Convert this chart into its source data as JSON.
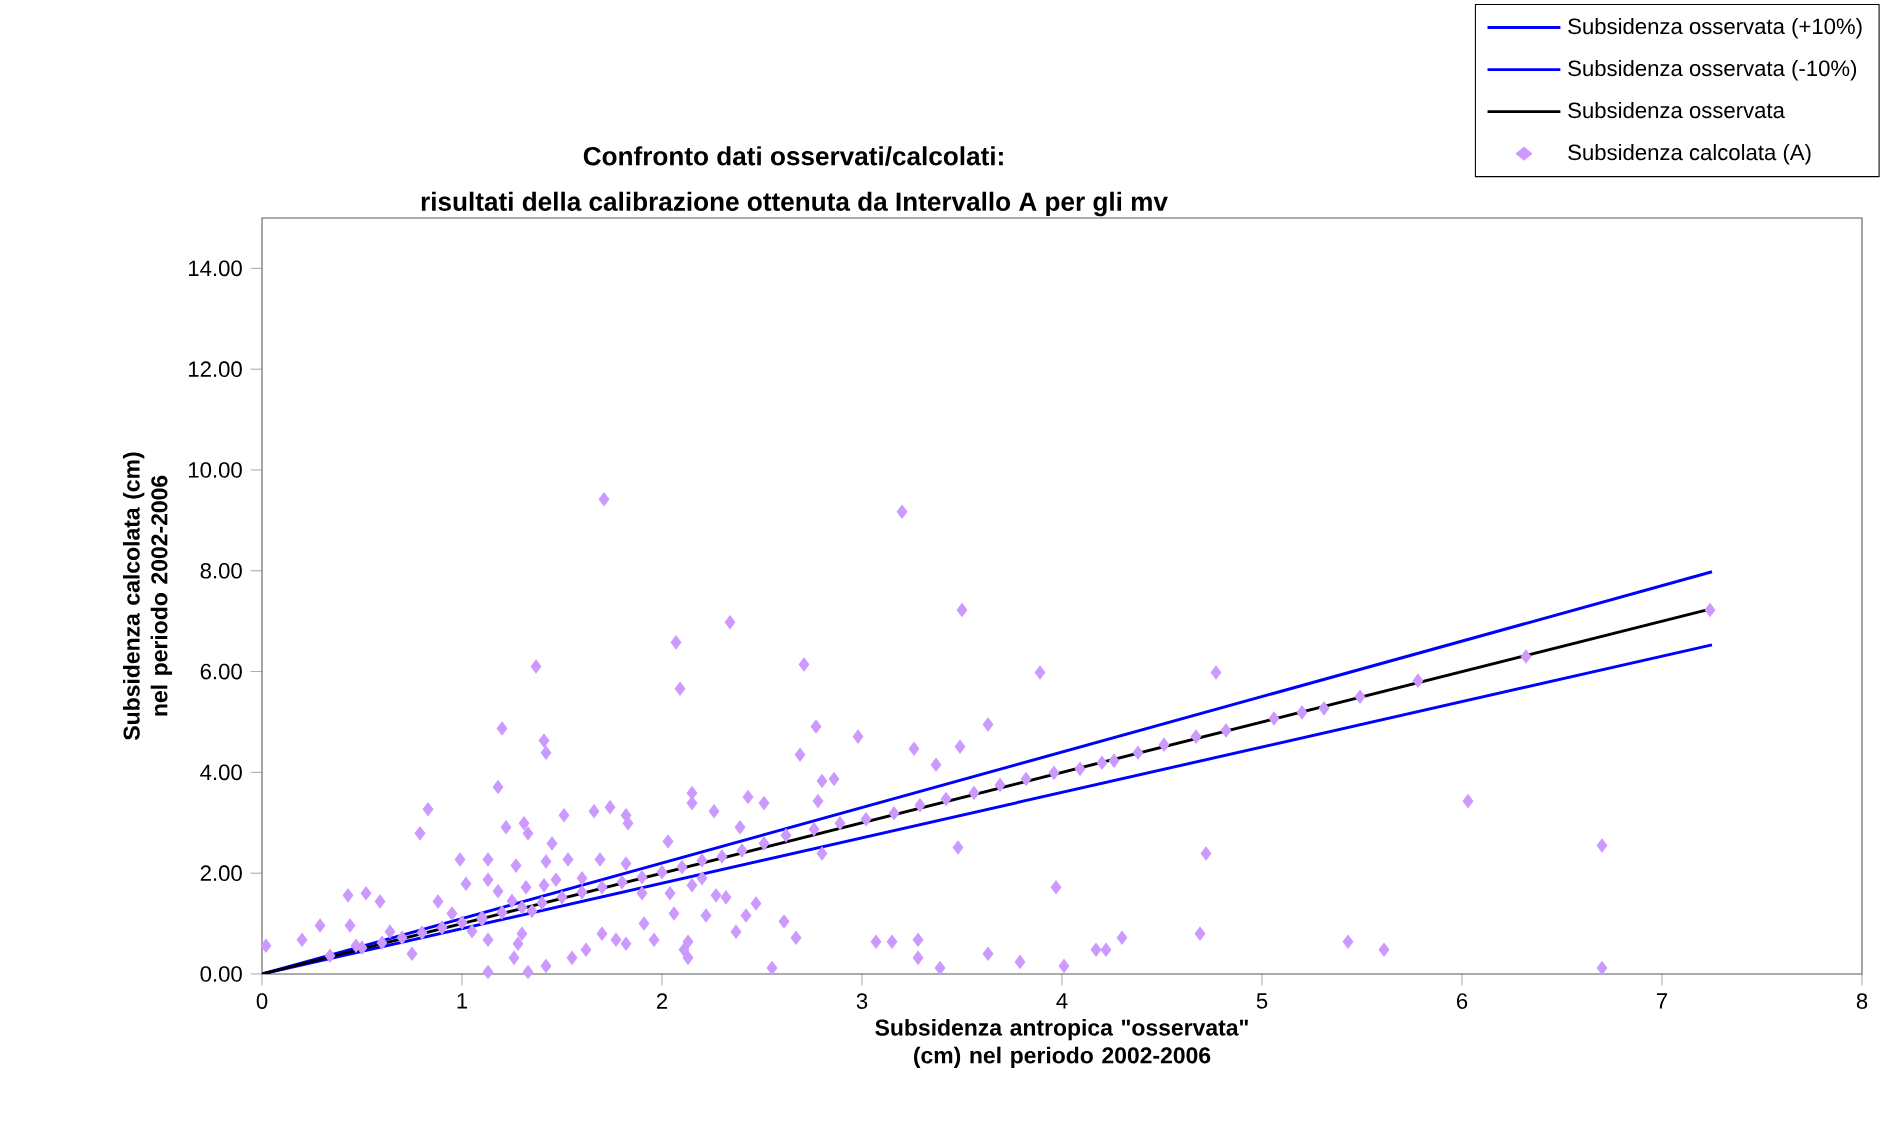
{
  "chart_data": {
    "type": "scatter",
    "title": "Confronto dati osservati/calcolati:",
    "subtitle": "risultati della calibrazione ottenuta da Intervallo A per gli mv",
    "xlabel": "Subsidenza antropica \"osservata\" (cm) nel periodo 2002-2006",
    "ylabel": "Subsidenza calcolata (cm) nel periodo 2002-2006",
    "xlim": [
      0,
      8
    ],
    "ylim": [
      0,
      15
    ],
    "xticks": [
      0,
      1,
      2,
      3,
      4,
      5,
      6,
      7,
      8
    ],
    "yticks": [
      {
        "value": 0,
        "label": "0.00"
      },
      {
        "value": 2,
        "label": "2.00"
      },
      {
        "value": 4,
        "label": "4.00"
      },
      {
        "value": 6,
        "label": "6.00"
      },
      {
        "value": 8,
        "label": "8.00"
      },
      {
        "value": 10,
        "label": "10.00"
      },
      {
        "value": 12,
        "label": "12.00"
      },
      {
        "value": 14,
        "label": "14.00"
      }
    ],
    "grid": false,
    "legend": "top right",
    "series": [
      {
        "name": "Subsidenza osservata (+10%)",
        "type": "line",
        "color": "#0000ff",
        "marker": "none",
        "x": [
          0,
          7.25
        ],
        "values": [
          0,
          7.98
        ]
      },
      {
        "name": "Subsidenza osservata (-10%)",
        "type": "line",
        "color": "#0000ff",
        "marker": "none",
        "x": [
          0,
          7.25
        ],
        "values": [
          0,
          6.53
        ]
      },
      {
        "name": "Subsidenza osservata",
        "type": "line",
        "color": "#000000",
        "marker": "none",
        "x": [
          0,
          7.25
        ],
        "values": [
          0,
          7.25
        ]
      },
      {
        "name": "Subsidenza calcolata (A)",
        "color": "#cc99ff",
        "marker": "diamond",
        "x": [
          1.71,
          2.34,
          2.07,
          2.71,
          2.09,
          1.37,
          1.2,
          1.41,
          1.42,
          2.77,
          2.98,
          2.69,
          1.18,
          0.83,
          0.79,
          1.51,
          1.66,
          1.74,
          1.82,
          1.83,
          2.15,
          2.15,
          2.26,
          2.43,
          2.51,
          2.8,
          2.86,
          2.78,
          2.39,
          2.03,
          1.22,
          1.31,
          1.33,
          1.45,
          0.99,
          1.13,
          1.27,
          1.42,
          1.53,
          1.69,
          1.82,
          0.43,
          0.52,
          0.59,
          0.88,
          1.02,
          1.13,
          1.18,
          1.32,
          1.41,
          1.47,
          2.04,
          2.15,
          2.27,
          2.32,
          2.47,
          2.06,
          2.22,
          2.42,
          2.61,
          2.37,
          2.67,
          2.8,
          1.91,
          1.96,
          1.82,
          1.7,
          1.77,
          1.62,
          1.55,
          1.3,
          1.28,
          1.26,
          1.33,
          1.42,
          1.13,
          1.13,
          1.1,
          0.75,
          0.64,
          0.44,
          0.29,
          0.2,
          0.02,
          0.34,
          0.47,
          2.13,
          2.11,
          2.13,
          2.55,
          3.2,
          3.5,
          3.89,
          4.77,
          3.63,
          3.26,
          3.49,
          3.37,
          3.48,
          3.97,
          4.72,
          3.07,
          3.15,
          3.28,
          3.28,
          3.39,
          3.63,
          3.79,
          4.01,
          4.17,
          4.22,
          4.3,
          4.69,
          5.43,
          6.03,
          6.7,
          6.7,
          5.61,
          7.24,
          6.32,
          5.78,
          5.49,
          5.31,
          5.2,
          5.06,
          4.82,
          4.67,
          4.51,
          4.38,
          4.26,
          4.2,
          4.09,
          3.96,
          3.82,
          3.69,
          3.56,
          3.42,
          3.29,
          3.16,
          3.02,
          2.89,
          2.76,
          2.62,
          2.51,
          2.4,
          2.3,
          2.2,
          2.1,
          2.0,
          1.9,
          1.8,
          1.7,
          1.6,
          1.5,
          1.4,
          1.3,
          1.2,
          1.1,
          1.0,
          0.9,
          0.8,
          0.7,
          0.6,
          0.5,
          1.25,
          1.35,
          1.6,
          1.9,
          2.2,
          0.95,
          1.05
        ],
        "values": [
          9.42,
          6.98,
          6.58,
          6.14,
          5.66,
          6.1,
          4.87,
          4.63,
          4.39,
          4.91,
          4.71,
          4.35,
          3.71,
          3.27,
          2.79,
          3.15,
          3.23,
          3.31,
          3.15,
          2.99,
          3.59,
          3.39,
          3.23,
          3.51,
          3.39,
          3.83,
          3.87,
          3.43,
          2.91,
          2.63,
          2.91,
          2.99,
          2.79,
          2.59,
          2.27,
          2.27,
          2.15,
          2.23,
          2.27,
          2.27,
          2.19,
          1.56,
          1.6,
          1.44,
          1.44,
          1.79,
          1.87,
          1.64,
          1.72,
          1.76,
          1.87,
          1.6,
          1.76,
          1.56,
          1.52,
          1.4,
          1.2,
          1.16,
          1.16,
          1.04,
          0.84,
          0.72,
          2.39,
          1.0,
          0.68,
          0.6,
          0.8,
          0.68,
          0.48,
          0.32,
          0.8,
          0.6,
          0.32,
          0.04,
          0.16,
          0.04,
          0.68,
          1.08,
          0.4,
          0.84,
          0.96,
          0.96,
          0.68,
          0.56,
          0.36,
          0.56,
          0.32,
          0.48,
          0.64,
          0.12,
          9.17,
          7.22,
          5.98,
          5.98,
          4.95,
          4.47,
          4.51,
          4.15,
          2.51,
          1.72,
          2.39,
          0.64,
          0.64,
          0.68,
          0.32,
          0.12,
          0.4,
          0.24,
          0.16,
          0.48,
          0.48,
          0.72,
          0.8,
          0.64,
          3.43,
          2.55,
          0.12,
          0.48,
          7.22,
          6.3,
          5.82,
          5.5,
          5.27,
          5.19,
          5.07,
          4.83,
          4.71,
          4.55,
          4.39,
          4.23,
          4.19,
          4.07,
          3.99,
          3.87,
          3.75,
          3.59,
          3.47,
          3.35,
          3.19,
          3.07,
          2.99,
          2.87,
          2.75,
          2.59,
          2.45,
          2.33,
          2.25,
          2.12,
          2.02,
          1.92,
          1.82,
          1.72,
          1.62,
          1.52,
          1.41,
          1.32,
          1.22,
          1.12,
          1.02,
          0.92,
          0.82,
          0.72,
          0.62,
          0.52,
          1.45,
          1.25,
          1.9,
          1.6,
          1.9,
          1.2,
          0.85
        ]
      }
    ]
  }
}
